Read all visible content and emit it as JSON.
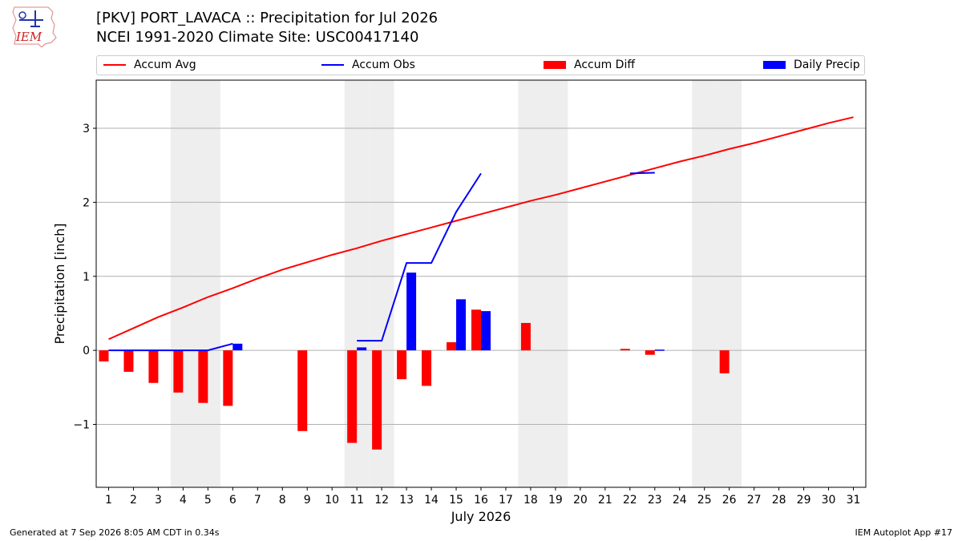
{
  "header": {
    "title_line1": "[PKV] PORT_LAVACA :: Precipitation for Jul 2026",
    "title_line2": "NCEI 1991-2020 Climate Site: USC00417140",
    "logo_text": "IEM"
  },
  "footer": {
    "generated": "Generated at 7 Sep 2026 8:05 AM CDT in 0.34s",
    "app": "IEM Autoplot App #17"
  },
  "colors": {
    "avg": "#ff0000",
    "obs": "#0000ff",
    "diff": "#ff0000",
    "daily": "#0000ff",
    "weekend": "#eeeeee",
    "grid": "#b0b0b0"
  },
  "chart_data": {
    "type": "bar",
    "title": "[PKV] PORT_LAVACA :: Precipitation for Jul 2026",
    "subtitle": "NCEI 1991-2020 Climate Site: USC00417140",
    "xlabel": "July 2026",
    "ylabel": "Precipitation [inch]",
    "xlim": [
      0.5,
      31.5
    ],
    "ylim": [
      -1.85,
      3.65
    ],
    "x_ticks": [
      1,
      2,
      3,
      4,
      5,
      6,
      7,
      8,
      9,
      10,
      11,
      12,
      13,
      14,
      15,
      16,
      17,
      18,
      19,
      20,
      21,
      22,
      23,
      24,
      25,
      26,
      27,
      28,
      29,
      30,
      31
    ],
    "y_ticks": [
      -1,
      0,
      1,
      2,
      3
    ],
    "y_tick_labels": [
      "−1",
      "0",
      "1",
      "2",
      "3"
    ],
    "grid": "y",
    "legend_position": "top",
    "shaded_days": [
      4,
      5,
      11,
      12,
      18,
      19,
      25,
      26
    ],
    "legend": [
      "Accum Avg",
      "Accum Obs",
      "Accum Diff",
      "Daily Precip"
    ],
    "accum_avg": {
      "name": "Accum Avg",
      "x": [
        1,
        2,
        3,
        4,
        5,
        6,
        7,
        8,
        9,
        10,
        11,
        12,
        13,
        14,
        15,
        16,
        17,
        18,
        19,
        20,
        21,
        22,
        23,
        24,
        25,
        26,
        27,
        28,
        29,
        30,
        31
      ],
      "y": [
        0.15,
        0.3,
        0.45,
        0.58,
        0.72,
        0.84,
        0.97,
        1.09,
        1.19,
        1.29,
        1.38,
        1.48,
        1.57,
        1.66,
        1.75,
        1.84,
        1.93,
        2.02,
        2.1,
        2.19,
        2.28,
        2.37,
        2.46,
        2.55,
        2.63,
        2.72,
        2.8,
        2.89,
        2.98,
        3.07,
        3.15
      ]
    },
    "accum_obs": {
      "name": "Accum Obs",
      "segments": [
        {
          "x": [
            1,
            2,
            3,
            4,
            5,
            6
          ],
          "y": [
            0,
            0,
            0,
            0,
            0,
            0.09
          ]
        },
        {
          "x": [
            11,
            12,
            13,
            14,
            15,
            16
          ],
          "y": [
            0.13,
            0.13,
            1.18,
            1.18,
            1.87,
            2.39
          ]
        },
        {
          "x": [
            22,
            23
          ],
          "y": [
            2.39,
            2.4
          ]
        }
      ]
    },
    "accum_diff": {
      "name": "Accum Diff",
      "x": [
        1,
        2,
        3,
        4,
        5,
        6,
        9,
        11,
        12,
        13,
        14,
        15,
        16,
        18,
        22,
        23,
        26
      ],
      "y": [
        -0.15,
        -0.29,
        -0.44,
        -0.57,
        -0.71,
        -0.75,
        -1.09,
        -1.25,
        -1.34,
        -0.39,
        -0.48,
        0.11,
        0.55,
        0.37,
        0.02,
        -0.06,
        -0.31
      ]
    },
    "daily_precip": {
      "name": "Daily Precip",
      "x": [
        6,
        11,
        13,
        15,
        16,
        23
      ],
      "y": [
        0.09,
        0.04,
        1.05,
        0.69,
        0.53,
        0.01
      ]
    }
  }
}
